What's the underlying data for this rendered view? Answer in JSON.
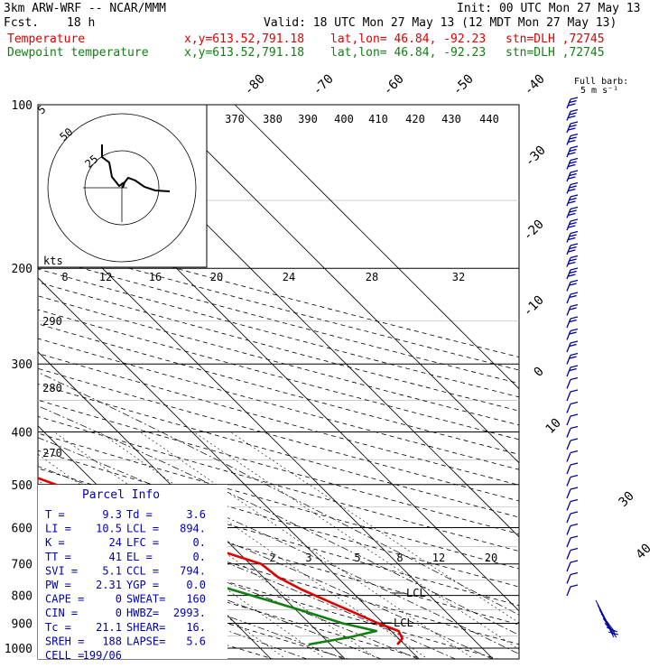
{
  "header": {
    "model": "3km ARW-WRF -- NCAR/MMM",
    "fcst_label": "Fcst.",
    "fcst_value": "18 h",
    "init": "Init: 00 UTC Mon 27 May 13",
    "valid": "Valid: 18 UTC Mon 27 May 13 (12 MDT Mon 27 May 13)",
    "temp_line": {
      "name": "Temperature",
      "xy": "x,y=613.52,791.18",
      "latlon": "lat,lon= 46.84, -92.23",
      "stn": "stn=DLH ,72745",
      "color": "#e00000"
    },
    "dew_line": {
      "name": "Dewpoint temperature",
      "xy": "x,y=613.52,791.18",
      "latlon": "lat,lon= 46.84, -92.23",
      "stn": "stn=DLH ,72745",
      "color": "#108010"
    }
  },
  "barb_legend": {
    "line1": "Full barb:",
    "line2": "5 m s⁻¹"
  },
  "hodograph": {
    "ring_labels": [
      "5",
      "50",
      "25"
    ],
    "kts_label": "kts"
  },
  "parcel_info": {
    "title": "Parcel Info",
    "rows": [
      [
        "T  =",
        "9.3",
        "Td =",
        "3.6"
      ],
      [
        "LI =",
        "10.5",
        "LCL =",
        "894."
      ],
      [
        "K  =",
        "24",
        "LFC =",
        "0."
      ],
      [
        "TT =",
        "41",
        "EL  =",
        "0."
      ],
      [
        "SVI =",
        "5.1",
        "CCL =",
        "794."
      ],
      [
        "PW =",
        "2.31",
        "YGP =",
        "0.0"
      ],
      [
        "CAPE =",
        "0",
        "SWEAT=",
        "160"
      ],
      [
        "CIN =",
        "0",
        "HWBZ=",
        "2993."
      ],
      [
        "Tc =",
        "21.1",
        "SHEAR=",
        "16."
      ],
      [
        "SREH =",
        "188",
        "LAPSE=",
        "5.6"
      ],
      [
        "CELL =",
        "199/06",
        "",
        ""
      ]
    ]
  },
  "chart_data": {
    "type": "line",
    "subtype": "skew-T log-P",
    "yaxis": "pressure",
    "ylabel": "",
    "xlabel": "",
    "ylim": [
      1000,
      100
    ],
    "pressure_ticks": [
      "100",
      "200",
      "300",
      "400",
      "500",
      "600",
      "700",
      "800",
      "900",
      "1000"
    ],
    "isotherm_labels": [
      "-80",
      "-70",
      "-60",
      "-50",
      "-40",
      "-30",
      "-20",
      "-10",
      "0",
      "10",
      "30",
      "40"
    ],
    "theta_labels": [
      "370",
      "380",
      "390",
      "400",
      "410",
      "420",
      "430",
      "440"
    ],
    "mixing_upper_labels": [
      "8",
      "12",
      "16",
      "20",
      "24",
      "28",
      "32"
    ],
    "mixing_lower_labels": [
      "2",
      "3",
      "5",
      "8",
      "12",
      "20"
    ],
    "dry_adiabat_labels": [
      "290",
      "280",
      "270"
    ],
    "annotations": [
      "LCL",
      "LCL"
    ],
    "series": [
      {
        "name": "Temperature",
        "color": "#e00000",
        "points": [
          {
            "p": 985,
            "t": 9.0
          },
          {
            "p": 960,
            "t": 10.5
          },
          {
            "p": 930,
            "t": 11.0
          },
          {
            "p": 900,
            "t": 9.3
          },
          {
            "p": 860,
            "t": 7.5
          },
          {
            "p": 820,
            "t": 5.5
          },
          {
            "p": 780,
            "t": 3.5
          },
          {
            "p": 740,
            "t": 2.0
          },
          {
            "p": 700,
            "t": 1.5
          },
          {
            "p": 650,
            "t": -3.5
          },
          {
            "p": 600,
            "t": -7.0
          },
          {
            "p": 550,
            "t": -11.0
          },
          {
            "p": 500,
            "t": -15.5
          },
          {
            "p": 450,
            "t": -21.5
          },
          {
            "p": 400,
            "t": -27.5
          },
          {
            "p": 350,
            "t": -34.0
          },
          {
            "p": 300,
            "t": -41.0
          },
          {
            "p": 250,
            "t": -47.5
          },
          {
            "p": 220,
            "t": -52.0
          },
          {
            "p": 200,
            "t": -53.5
          },
          {
            "p": 180,
            "t": -54.5
          },
          {
            "p": 165,
            "t": -57.5
          },
          {
            "p": 155,
            "t": -55.5
          },
          {
            "p": 145,
            "t": -53.0
          },
          {
            "p": 130,
            "t": -52.0
          },
          {
            "p": 115,
            "t": -51.5
          },
          {
            "p": 100,
            "t": -52.0
          }
        ]
      },
      {
        "name": "Dewpoint temperature",
        "color": "#108010",
        "points": [
          {
            "p": 985,
            "t": -3.0
          },
          {
            "p": 955,
            "t": 3.5
          },
          {
            "p": 930,
            "t": 8.0
          },
          {
            "p": 900,
            "t": 4.5
          },
          {
            "p": 850,
            "t": 0.5
          },
          {
            "p": 800,
            "t": -4.0
          },
          {
            "p": 750,
            "t": -9.0
          },
          {
            "p": 720,
            "t": -12.0
          },
          {
            "p": 700,
            "t": -14.0
          },
          {
            "p": 650,
            "t": -13.5
          },
          {
            "p": 600,
            "t": -26.0
          },
          {
            "p": 550,
            "t": -43.0
          },
          {
            "p": 500,
            "t": -45.0
          },
          {
            "p": 450,
            "t": -48.0
          },
          {
            "p": 400,
            "t": -53.0
          },
          {
            "p": 350,
            "t": -57.0
          },
          {
            "p": 320,
            "t": -62.0
          },
          {
            "p": 300,
            "t": -62.0
          },
          {
            "p": 260,
            "t": -62.0
          },
          {
            "p": 230,
            "t": -59.5
          },
          {
            "p": 210,
            "t": -63.0
          },
          {
            "p": 190,
            "t": -66.0
          },
          {
            "p": 150,
            "t": -73.0
          },
          {
            "p": 130,
            "t": -78.0
          },
          {
            "p": 115,
            "t": -85.0
          },
          {
            "p": 100,
            "t": -92.0
          }
        ]
      }
    ]
  }
}
